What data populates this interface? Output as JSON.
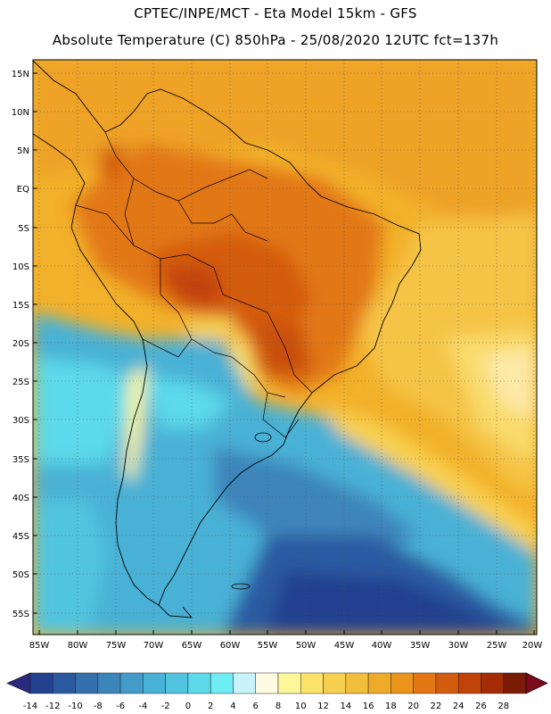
{
  "header": {
    "line1": "CPTEC/INPE/MCT -  Eta Model 15km - GFS",
    "line2": "Absolute Temperature (C) 850hPa - 25/08/2020 12UTC fct=137h"
  },
  "map": {
    "lat_labels": [
      "15N",
      "10N",
      "5N",
      "EQ",
      "5S",
      "10S",
      "15S",
      "20S",
      "25S",
      "30S",
      "35S",
      "40S",
      "45S",
      "50S",
      "55S"
    ],
    "lon_labels": [
      "85W",
      "80W",
      "75W",
      "70W",
      "65W",
      "60W",
      "55W",
      "50W",
      "45W",
      "40W",
      "35W",
      "30W",
      "25W",
      "20W"
    ]
  },
  "legend": {
    "ticks": [
      "-14",
      "-12",
      "-10",
      "-8",
      "-6",
      "-4",
      "-2",
      "0",
      "2",
      "4",
      "6",
      "8",
      "10",
      "12",
      "14",
      "16",
      "18",
      "20",
      "22",
      "24",
      "26",
      "28"
    ],
    "colors": [
      "#23418f",
      "#2b5aa1",
      "#3570ae",
      "#3c85bb",
      "#429bc9",
      "#48b1d5",
      "#51c5e0",
      "#5cd9ea",
      "#6eedf5",
      "#c8f3fb",
      "#fefbe2",
      "#fef79a",
      "#fbe36a",
      "#f8d050",
      "#f3be3c",
      "#efab28",
      "#ea951a",
      "#e27714",
      "#d45c0e",
      "#c24309",
      "#a42c07",
      "#7a1b05"
    ],
    "under_color": "#2c2a7f",
    "over_color": "#7a0a1c"
  }
}
